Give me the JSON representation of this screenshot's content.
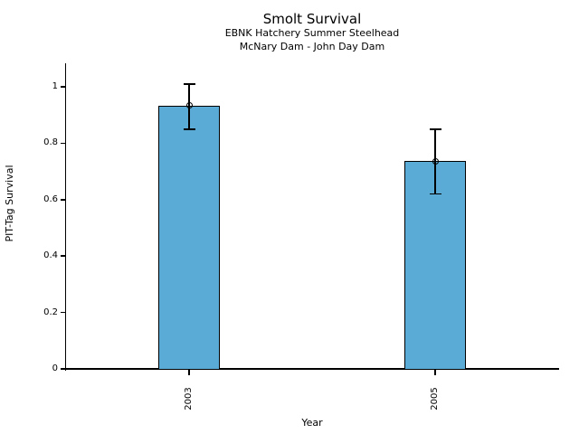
{
  "chart_data": {
    "type": "bar",
    "title": "Smolt Survival",
    "subtitle_line_1": "EBNK Hatchery Summer Steelhead",
    "subtitle_line_2": "McNary Dam - John Day Dam",
    "xlabel": "Year",
    "ylabel": "PIT-Tag Survival",
    "categories": [
      "2003",
      "2005"
    ],
    "values": [
      0.933,
      0.737
    ],
    "error_upper": [
      1.01,
      0.85
    ],
    "error_lower": [
      0.85,
      0.62
    ],
    "error_marker": "open-circle",
    "yticks": [
      0,
      0.2,
      0.4,
      0.6,
      0.8,
      1
    ],
    "ytick_labels": [
      "0",
      "0.2",
      "0.4",
      "0.6",
      "0.8",
      "1"
    ],
    "ylim": [
      0,
      1.08
    ],
    "grid": false,
    "legend": null,
    "colors": {
      "bar_fill": "#5AABD6",
      "bar_edge": "#000000",
      "error_bar": "#000000",
      "text": "#000000",
      "background": "#FFFFFF"
    }
  }
}
